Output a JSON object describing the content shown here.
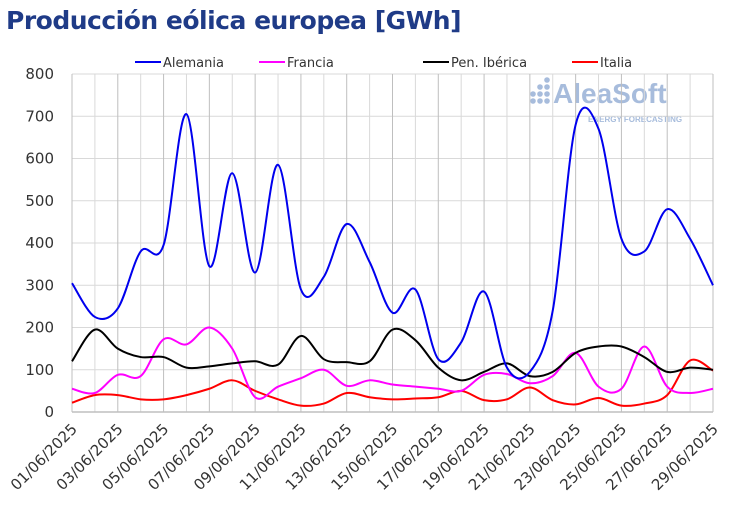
{
  "chart_data": {
    "type": "line",
    "title": "Producción eólica europea [GWh]",
    "xlabel": "",
    "ylabel": "",
    "ylim": [
      0,
      800
    ],
    "yticks": [
      "0",
      "100",
      "200",
      "300",
      "400",
      "500",
      "600",
      "700",
      "800"
    ],
    "x": [
      "01/06/2025",
      "02/06/2025",
      "03/06/2025",
      "04/06/2025",
      "05/06/2025",
      "06/06/2025",
      "07/06/2025",
      "08/06/2025",
      "09/06/2025",
      "10/06/2025",
      "11/06/2025",
      "12/06/2025",
      "13/06/2025",
      "14/06/2025",
      "15/06/2025",
      "16/06/2025",
      "17/06/2025",
      "18/06/2025",
      "19/06/2025",
      "20/06/2025",
      "21/06/2025",
      "22/06/2025",
      "23/06/2025",
      "24/06/2025",
      "25/06/2025",
      "26/06/2025",
      "27/06/2025",
      "28/06/2025",
      "29/06/2025"
    ],
    "xtick_labels": [
      "01/06/2025",
      "03/06/2025",
      "05/06/2025",
      "07/06/2025",
      "09/06/2025",
      "11/06/2025",
      "13/06/2025",
      "15/06/2025",
      "17/06/2025",
      "19/06/2025",
      "21/06/2025",
      "23/06/2025",
      "25/06/2025",
      "27/06/2025",
      "29/06/2025"
    ],
    "legend_position": "top",
    "grid": true,
    "series": [
      {
        "name": "Alemania",
        "color": "#0000ee",
        "values": [
          305,
          225,
          245,
          380,
          395,
          705,
          345,
          565,
          330,
          585,
          290,
          320,
          445,
          355,
          235,
          290,
          125,
          165,
          285,
          105,
          95,
          240,
          680,
          670,
          410,
          380,
          480,
          410,
          300
        ]
      },
      {
        "name": "Francia",
        "color": "#ff00ff",
        "values": [
          55,
          45,
          88,
          85,
          172,
          160,
          200,
          150,
          35,
          60,
          80,
          100,
          62,
          75,
          65,
          60,
          55,
          50,
          88,
          90,
          68,
          85,
          140,
          60,
          55,
          155,
          60,
          45,
          55
        ]
      },
      {
        "name": "Pen. Ibérica",
        "color": "#000000",
        "values": [
          120,
          195,
          150,
          130,
          130,
          105,
          108,
          115,
          120,
          112,
          180,
          125,
          118,
          120,
          195,
          170,
          105,
          75,
          95,
          115,
          85,
          95,
          140,
          155,
          155,
          130,
          95,
          105,
          100
        ]
      },
      {
        "name": "Italia",
        "color": "#ff0000",
        "values": [
          22,
          40,
          40,
          30,
          30,
          40,
          55,
          75,
          50,
          30,
          15,
          20,
          45,
          35,
          30,
          32,
          35,
          50,
          28,
          30,
          58,
          28,
          18,
          33,
          15,
          20,
          40,
          122,
          98
        ]
      }
    ]
  },
  "watermark": {
    "brand": "AleaSoft",
    "tagline": "ENERGY FORECASTING"
  }
}
